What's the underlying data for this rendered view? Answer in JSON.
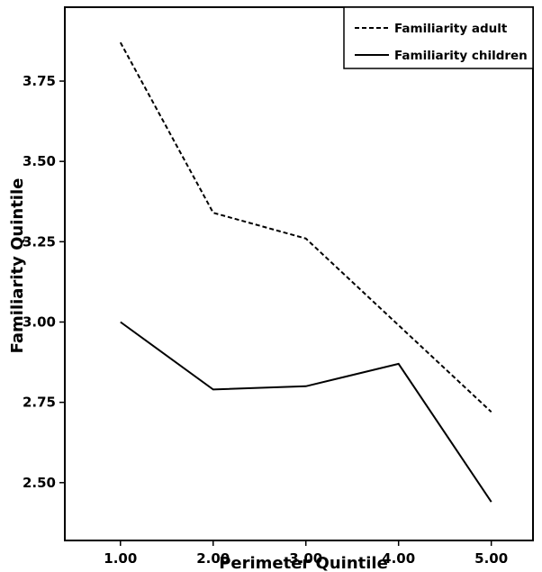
{
  "chart_data": {
    "type": "line",
    "title": "",
    "xlabel": "Perimeter Quintile",
    "ylabel": "Familiarity Quintile",
    "x": [
      1,
      2,
      3,
      4,
      5
    ],
    "x_tick_labels": [
      "1.00",
      "2.00",
      "3.00",
      "4.00",
      "5.00"
    ],
    "xlim": [
      0.4,
      5.45
    ],
    "y_ticks": [
      2.5,
      2.75,
      3.0,
      3.25,
      3.5,
      3.75
    ],
    "y_tick_labels": [
      "2.50",
      "2.75",
      "3.00",
      "3.25",
      "3.50",
      "3.75"
    ],
    "ylim": [
      2.32,
      3.98
    ],
    "grid": false,
    "legend_position": "top-right",
    "series": [
      {
        "name": "Familiarity adult",
        "values": [
          3.87,
          3.34,
          3.26,
          2.99,
          2.72
        ],
        "line_style": "dashed",
        "color": "#000000"
      },
      {
        "name": "Familiarity children",
        "values": [
          3.0,
          2.79,
          2.8,
          2.87,
          2.44
        ],
        "line_style": "solid",
        "color": "#000000"
      }
    ]
  }
}
